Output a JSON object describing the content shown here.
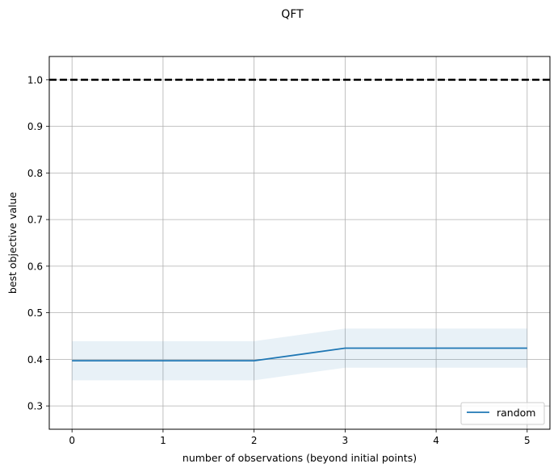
{
  "chart_data": {
    "type": "line",
    "title": "QFT",
    "xlabel": "number of observations (beyond initial points)",
    "ylabel": "best objective value",
    "x": [
      0,
      1,
      2,
      3,
      4,
      5
    ],
    "xlim": [
      -0.25,
      5.25
    ],
    "ylim": [
      0.25,
      1.05
    ],
    "xticks": [
      0,
      1,
      2,
      3,
      4,
      5
    ],
    "yticks": [
      0.3,
      0.4,
      0.5,
      0.6,
      0.7,
      0.8,
      0.9,
      1.0
    ],
    "xtick_labels": [
      "0",
      "1",
      "2",
      "3",
      "4",
      "5"
    ],
    "ytick_labels": [
      "0.3",
      "0.4",
      "0.5",
      "0.6",
      "0.7",
      "0.8",
      "0.9",
      "1.0"
    ],
    "grid": true,
    "legend_position": "lower-right",
    "series": [
      {
        "name": "random",
        "color": "#1f77b4",
        "values": [
          0.397,
          0.397,
          0.397,
          0.424,
          0.424,
          0.424
        ],
        "band_lower": [
          0.355,
          0.355,
          0.355,
          0.382,
          0.382,
          0.382
        ],
        "band_upper": [
          0.439,
          0.439,
          0.439,
          0.466,
          0.466,
          0.466
        ],
        "band_color": "#1f77b4"
      }
    ],
    "reference_line": {
      "y": 1.0,
      "style": "dashed",
      "color": "#000000"
    }
  }
}
